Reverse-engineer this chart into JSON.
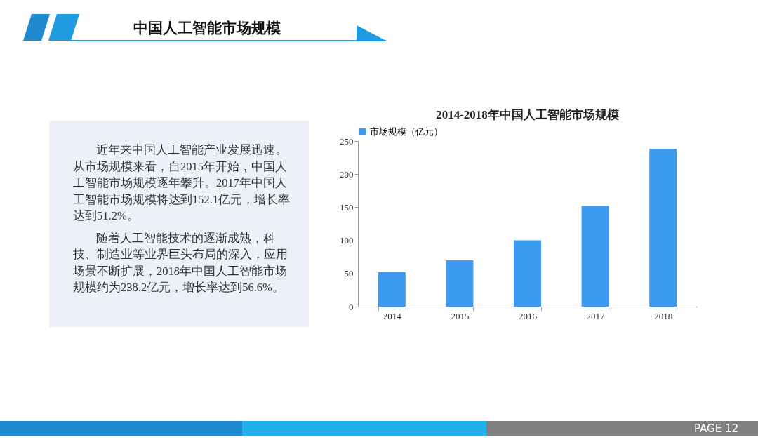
{
  "chart_data": {
    "type": "bar",
    "title": "中国人工智能市场规模",
    "subtitle": "2014-2018年中国人工智能市场规模",
    "categories": [
      "2014",
      "2015",
      "2016",
      "2017",
      "2018"
    ],
    "series": [
      {
        "name": "市场规模（亿元）",
        "color": "#3d9bef",
        "values": [
          52,
          70,
          100,
          152.1,
          238.2
        ]
      }
    ],
    "ylim": [
      0,
      250
    ],
    "yticks": [
      0,
      50,
      100,
      150,
      200,
      250
    ],
    "grid": false,
    "legend": "top",
    "annotations": [
      "近年来中国人工智能产业发展迅速。从市场规模来看，自2015年开始，中国人工智能市场规模逐年攀升。2017年中国人工智能市场规模将达到152.1亿元，增长率达到51.2%。",
      "随着人工智能技术的逐渐成熟，科技、制造业等业界巨头布局的深入，应用场景不断扩展，2018年中国人工智能市场规模约为238.2亿元，增长率达到56.6%。",
      "PAGE  12"
    ]
  }
}
